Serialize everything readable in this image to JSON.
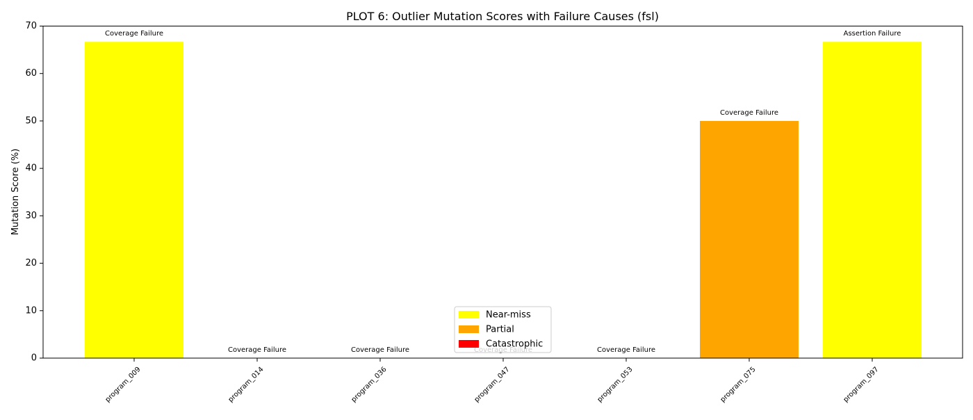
{
  "chart_data": {
    "type": "bar",
    "title": "PLOT 6: Outlier Mutation Scores with Failure Causes (fsl)",
    "xlabel": "",
    "ylabel": "Mutation Score (%)",
    "ylim": [
      0,
      70
    ],
    "yticks": [
      0,
      10,
      20,
      30,
      40,
      50,
      60,
      70
    ],
    "categories": [
      "program_009",
      "program_014",
      "program_036",
      "program_047",
      "program_053",
      "program_075",
      "program_097"
    ],
    "values": [
      66.67,
      0,
      0,
      0,
      0,
      50,
      66.67
    ],
    "severity": [
      "Near-miss",
      "Catastrophic",
      "Catastrophic",
      "Catastrophic",
      "Catastrophic",
      "Partial",
      "Near-miss"
    ],
    "annotations": [
      "Coverage Failure",
      "Coverage Failure",
      "Coverage Failure",
      "Coverage Failure",
      "Coverage Failure",
      "Coverage Failure",
      "Assertion Failure"
    ],
    "legend": {
      "placement": "lower-center",
      "entries": [
        {
          "label": "Near-miss",
          "color": "#ffff00"
        },
        {
          "label": "Partial",
          "color": "#ffa500"
        },
        {
          "label": "Catastrophic",
          "color": "#ff0000"
        }
      ]
    },
    "grid": false
  }
}
